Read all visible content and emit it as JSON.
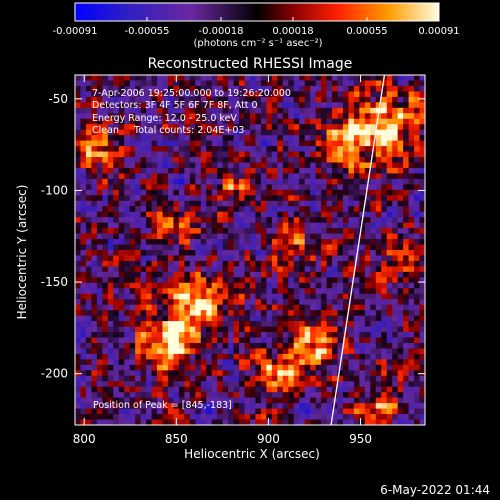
{
  "chart_data": {
    "type": "heatmap",
    "title": "Reconstructed RHESSI Image",
    "xlabel": "Heliocentric X (arcsec)",
    "ylabel": "Heliocentric Y (arcsec)",
    "xlim": [
      795,
      985
    ],
    "ylim": [
      -228,
      -37
    ],
    "x_ticks": [
      800,
      850,
      900,
      950
    ],
    "y_ticks": [
      -50,
      -100,
      -150,
      -200
    ],
    "colorbar": {
      "label": "(photons cm⁻² s⁻¹ asec⁻²)",
      "ticks": [
        "-0.00091",
        "-0.00055",
        "-0.00018",
        "0.00018",
        "0.00055",
        "0.00091"
      ],
      "min": -0.00091,
      "max": 0.00091
    },
    "annotations": [
      "7-Apr-2006 19:25:00.000 to 19:26:20.000",
      "Detectors: 3F 4F 5F 6F 7F 8F, Att 0",
      "Energy Range: 12.0 - 25.0 keV",
      "Clean     Total counts: 2.04E+03"
    ],
    "peak_label": "Position of Peak = [845,-183]",
    "limb_line": [
      [
        934,
        -228
      ],
      [
        963,
        -37
      ]
    ],
    "grid": false
  },
  "footer": {
    "date": "6-May-2022 01:44"
  }
}
